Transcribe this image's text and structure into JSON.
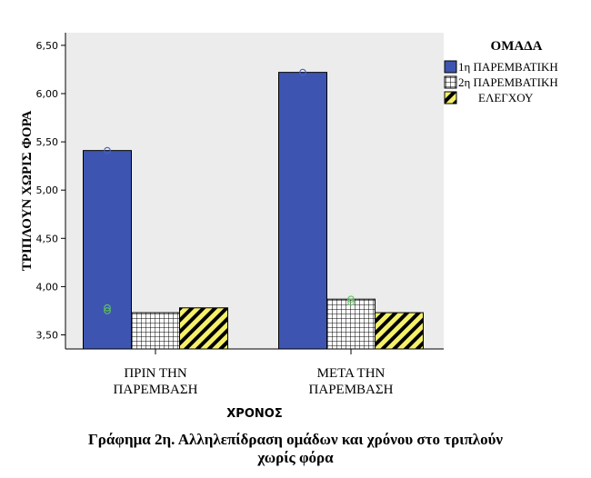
{
  "chart_data": {
    "type": "bar",
    "title": "",
    "xlabel": "ΧΡΟΝΟΣ",
    "ylabel": "ΤΡΙΠΛΟΥΝ  ΧΩΡΙΣ ΦΟΡΑ",
    "categories": [
      [
        "ΠΡΙΝ ΤΗΝ",
        "ΠΑΡΕΜΒΑΣΗ"
      ],
      [
        "ΜΕΤΑ ΤΗΝ",
        "ΠΑΡΕΜΒΑΣΗ"
      ]
    ],
    "ylim": [
      3.3,
      6.6
    ],
    "yticks": [
      "3,50",
      "4,00",
      "4,50",
      "5,00",
      "5,50",
      "6,00",
      "6,50"
    ],
    "ytick_values": [
      3.5,
      4.0,
      4.5,
      5.0,
      5.5,
      6.0,
      6.5
    ],
    "grid": false,
    "legend": {
      "title": "ΟΜΑΔΑ",
      "position": "right"
    },
    "series": [
      {
        "name": "1η ΠΑΡΕΜΒΑΤΙΚΗ",
        "values": [
          5.41,
          6.22
        ],
        "color": "#3d55b0",
        "pattern": "solid"
      },
      {
        "name": "2η ΠΑΡΕΜΒΑΤΙΚΗ",
        "values": [
          3.73,
          3.87
        ],
        "color": "#ffffff",
        "pattern": "grid"
      },
      {
        "name": "ΕΛΕΓΧΟΥ",
        "values": [
          3.78,
          3.73
        ],
        "color": "#f5f06a",
        "pattern": "diagonal"
      }
    ],
    "outliers": [
      {
        "category": 0,
        "series": 0,
        "y": 5.41,
        "color": "#4a63c4"
      },
      {
        "category": 0,
        "series": 0,
        "y": 3.78,
        "color": "#5cc45c"
      },
      {
        "category": 0,
        "series": 0,
        "y": 3.75,
        "color": "#5cc45c"
      },
      {
        "category": 1,
        "series": 0,
        "y": 6.22,
        "color": "#4a63c4"
      },
      {
        "category": 1,
        "series": 1,
        "y": 3.87,
        "color": "#5cc45c"
      },
      {
        "category": 1,
        "series": 1,
        "y": 3.84,
        "color": "#5cc45c"
      }
    ]
  },
  "caption": {
    "line1": "Γράφημα 2η. Αλληλεπίδραση ομάδων και χρόνου στο τριπλούν",
    "line2": "χωρίς φόρα"
  }
}
